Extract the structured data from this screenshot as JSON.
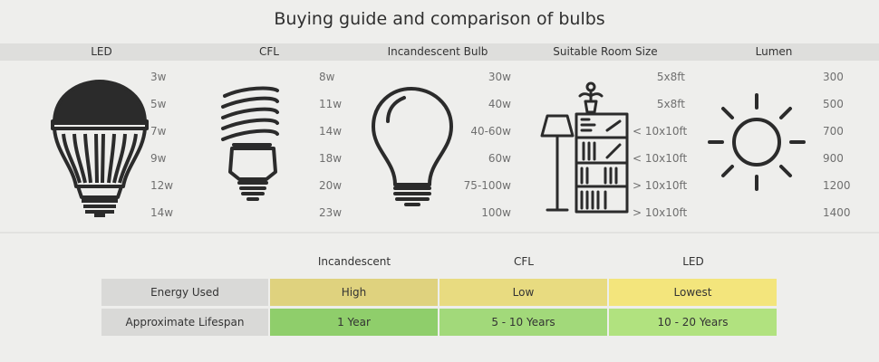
{
  "title": "Buying guide and comparison of bulbs",
  "columns": {
    "led": "LED",
    "cfl": "CFL",
    "incandescent": "Incandescent Bulb",
    "room": "Suitable Room Size",
    "lumen": "Lumen"
  },
  "led_watts": [
    "3w",
    "5w",
    "7w",
    "9w",
    "12w",
    "14w"
  ],
  "cfl_watts": [
    "8w",
    "11w",
    "14w",
    "18w",
    "20w",
    "23w"
  ],
  "incandescent_watts": [
    "30w",
    "40w",
    "40-60w",
    "60w",
    "75-100w",
    "100w"
  ],
  "room_sizes": [
    "5x8ft",
    "5x8ft",
    "< 10x10ft",
    "< 10x10ft",
    "> 10x10ft",
    "> 10x10ft"
  ],
  "lumens": [
    "300",
    "500",
    "700",
    "900",
    "1200",
    "1400"
  ],
  "icons": {
    "led": "led-bulb-icon",
    "cfl": "cfl-bulb-icon",
    "incandescent": "incandescent-bulb-icon",
    "room": "room-with-lamp-and-bookshelf-icon",
    "lumen": "sun-icon"
  },
  "table": {
    "headers": [
      "Incandescent",
      "CFL",
      "LED"
    ],
    "rows": [
      {
        "label": "Energy Used",
        "values": [
          "High",
          "Low",
          "Lowest"
        ]
      },
      {
        "label": "Approximate Lifespan",
        "values": [
          "1 Year",
          "5 - 10 Years",
          "10 - 20 Years"
        ]
      }
    ]
  },
  "colors": {
    "label_cell": "#d9d9d7",
    "energy": [
      "#dfd27e",
      "#e8db80",
      "#f3e57c"
    ],
    "lifespan": [
      "#8fce6b",
      "#a2d97a",
      "#b1e27f"
    ]
  }
}
